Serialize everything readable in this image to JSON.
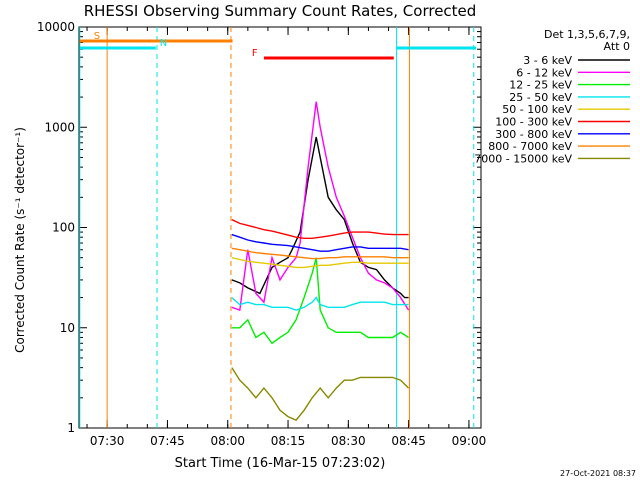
{
  "chart_data": {
    "type": "line",
    "title": "RHESSI Observing Summary Count Rates, Corrected",
    "xlabel": "Start Time (16-Mar-15 07:23:02)",
    "ylabel": "Corrected Count Rate (s⁻¹ detector⁻¹)",
    "y_scale": "log",
    "ylim": [
      1,
      10000
    ],
    "xlim_minutes": [
      0,
      100
    ],
    "x_tick_labels": [
      "07:30",
      "07:45",
      "08:00",
      "08:15",
      "08:30",
      "08:45",
      "09:00"
    ],
    "x_tick_minutes": [
      7,
      22,
      37,
      52,
      67,
      82,
      97
    ],
    "y_tick_labels": [
      "1",
      "10",
      "100",
      "1000",
      "10000"
    ],
    "y_tick_values": [
      1,
      10,
      100,
      1000,
      10000
    ],
    "legend": {
      "header_line1": "Det 1,3,5,6,7,9,",
      "header_line2": "Att 0",
      "placement": "top-right outside"
    },
    "timestamp": "27-Oct-2021 08:37",
    "flags": [
      {
        "label": "S",
        "color": "#ff8000",
        "x_start": 0.2,
        "x_end": 38.2
      },
      {
        "label": "N",
        "color": "#00e5ee",
        "x_start": 0.2,
        "x_end": 19.1
      },
      {
        "label": "F",
        "color": "#ff0000",
        "x_start": 46.0,
        "x_end": 78.3
      }
    ],
    "flag_n_second": {
      "x_start": 79.0,
      "x_end": 98.8
    },
    "vlines": [
      {
        "x": 0.2,
        "style": "solid",
        "color": "#00e5ee"
      },
      {
        "x": 7.0,
        "style": "solid",
        "color": "#ff8000"
      },
      {
        "x": 19.4,
        "style": "dashed",
        "color": "#00e5ee"
      },
      {
        "x": 37.8,
        "style": "dashed",
        "color": "#ff8000"
      },
      {
        "x": 79.0,
        "style": "solid",
        "color": "#00e5ee"
      },
      {
        "x": 82.2,
        "style": "solid",
        "color": "#ff8000"
      },
      {
        "x": 98.2,
        "style": "dashed",
        "color": "#00e5ee"
      }
    ],
    "series": [
      {
        "name": "3 - 6 keV",
        "color": "#000000",
        "points": [
          [
            38,
            30
          ],
          [
            40,
            28
          ],
          [
            42,
            25
          ],
          [
            45,
            22
          ],
          [
            48,
            40
          ],
          [
            50,
            45
          ],
          [
            52,
            50
          ],
          [
            53,
            60
          ],
          [
            55,
            90
          ],
          [
            57,
            300
          ],
          [
            59,
            800
          ],
          [
            60,
            500
          ],
          [
            62,
            200
          ],
          [
            64,
            150
          ],
          [
            66,
            120
          ],
          [
            68,
            70
          ],
          [
            70,
            45
          ],
          [
            72,
            40
          ],
          [
            74,
            38
          ],
          [
            76,
            30
          ],
          [
            78,
            25
          ],
          [
            80,
            22
          ],
          [
            81,
            20
          ],
          [
            82,
            20
          ]
        ]
      },
      {
        "name": "6 - 12 keV",
        "color": "#ff00ff",
        "points": [
          [
            38,
            16
          ],
          [
            40,
            15
          ],
          [
            42,
            60
          ],
          [
            44,
            22
          ],
          [
            46,
            18
          ],
          [
            48,
            50
          ],
          [
            50,
            30
          ],
          [
            52,
            40
          ],
          [
            54,
            50
          ],
          [
            55,
            70
          ],
          [
            57,
            400
          ],
          [
            59,
            1800
          ],
          [
            60,
            1000
          ],
          [
            62,
            400
          ],
          [
            64,
            200
          ],
          [
            66,
            130
          ],
          [
            68,
            80
          ],
          [
            70,
            50
          ],
          [
            72,
            35
          ],
          [
            74,
            30
          ],
          [
            76,
            28
          ],
          [
            78,
            25
          ],
          [
            80,
            20
          ],
          [
            82,
            15
          ]
        ]
      },
      {
        "name": "12 - 25 keV",
        "color": "#00ee00",
        "points": [
          [
            38,
            10
          ],
          [
            40,
            10
          ],
          [
            42,
            12
          ],
          [
            44,
            8
          ],
          [
            46,
            9
          ],
          [
            48,
            7
          ],
          [
            50,
            8
          ],
          [
            52,
            9
          ],
          [
            54,
            12
          ],
          [
            56,
            20
          ],
          [
            58,
            35
          ],
          [
            59,
            50
          ],
          [
            60,
            15
          ],
          [
            62,
            10
          ],
          [
            64,
            9
          ],
          [
            66,
            9
          ],
          [
            68,
            9
          ],
          [
            70,
            9
          ],
          [
            72,
            8
          ],
          [
            74,
            8
          ],
          [
            76,
            8
          ],
          [
            78,
            8
          ],
          [
            80,
            9
          ],
          [
            82,
            8
          ]
        ]
      },
      {
        "name": "25 - 50 keV",
        "color": "#00e5ee",
        "points": [
          [
            38,
            20
          ],
          [
            40,
            17
          ],
          [
            42,
            18
          ],
          [
            44,
            17
          ],
          [
            46,
            17
          ],
          [
            48,
            16
          ],
          [
            50,
            16
          ],
          [
            52,
            16
          ],
          [
            54,
            15
          ],
          [
            56,
            16
          ],
          [
            58,
            18
          ],
          [
            59,
            20
          ],
          [
            60,
            17
          ],
          [
            62,
            16
          ],
          [
            64,
            16
          ],
          [
            66,
            16
          ],
          [
            68,
            17
          ],
          [
            70,
            18
          ],
          [
            72,
            18
          ],
          [
            74,
            18
          ],
          [
            76,
            18
          ],
          [
            78,
            17
          ],
          [
            80,
            17
          ],
          [
            82,
            17
          ]
        ]
      },
      {
        "name": "50 - 100 keV",
        "color": "#e6c800",
        "points": [
          [
            38,
            50
          ],
          [
            40,
            48
          ],
          [
            42,
            46
          ],
          [
            44,
            45
          ],
          [
            46,
            44
          ],
          [
            48,
            43
          ],
          [
            50,
            42
          ],
          [
            52,
            41
          ],
          [
            54,
            40
          ],
          [
            56,
            40
          ],
          [
            58,
            41
          ],
          [
            60,
            42
          ],
          [
            62,
            42
          ],
          [
            64,
            43
          ],
          [
            66,
            44
          ],
          [
            68,
            45
          ],
          [
            70,
            45
          ],
          [
            72,
            44
          ],
          [
            74,
            44
          ],
          [
            76,
            44
          ],
          [
            78,
            44
          ],
          [
            80,
            44
          ],
          [
            82,
            44
          ]
        ]
      },
      {
        "name": "100 - 300 keV",
        "color": "#ff0000",
        "points": [
          [
            38,
            120
          ],
          [
            40,
            110
          ],
          [
            42,
            105
          ],
          [
            44,
            100
          ],
          [
            46,
            95
          ],
          [
            48,
            92
          ],
          [
            50,
            88
          ],
          [
            52,
            84
          ],
          [
            54,
            80
          ],
          [
            56,
            78
          ],
          [
            58,
            78
          ],
          [
            60,
            80
          ],
          [
            62,
            82
          ],
          [
            64,
            85
          ],
          [
            66,
            88
          ],
          [
            68,
            90
          ],
          [
            70,
            90
          ],
          [
            72,
            90
          ],
          [
            74,
            88
          ],
          [
            76,
            86
          ],
          [
            78,
            85
          ],
          [
            80,
            85
          ],
          [
            82,
            85
          ]
        ]
      },
      {
        "name": "300 - 800 keV",
        "color": "#0000ff",
        "points": [
          [
            38,
            85
          ],
          [
            40,
            80
          ],
          [
            42,
            75
          ],
          [
            44,
            72
          ],
          [
            46,
            70
          ],
          [
            48,
            68
          ],
          [
            50,
            67
          ],
          [
            52,
            66
          ],
          [
            54,
            64
          ],
          [
            56,
            62
          ],
          [
            58,
            60
          ],
          [
            60,
            58
          ],
          [
            62,
            58
          ],
          [
            64,
            60
          ],
          [
            66,
            62
          ],
          [
            68,
            64
          ],
          [
            70,
            64
          ],
          [
            72,
            62
          ],
          [
            74,
            62
          ],
          [
            76,
            62
          ],
          [
            78,
            62
          ],
          [
            80,
            62
          ],
          [
            82,
            60
          ]
        ]
      },
      {
        "name": "800 - 7000 keV",
        "color": "#ff8000",
        "points": [
          [
            38,
            62
          ],
          [
            40,
            60
          ],
          [
            42,
            58
          ],
          [
            44,
            56
          ],
          [
            46,
            55
          ],
          [
            48,
            54
          ],
          [
            50,
            53
          ],
          [
            52,
            52
          ],
          [
            54,
            51
          ],
          [
            56,
            50
          ],
          [
            58,
            49
          ],
          [
            60,
            49
          ],
          [
            62,
            50
          ],
          [
            64,
            50
          ],
          [
            66,
            51
          ],
          [
            68,
            51
          ],
          [
            70,
            51
          ],
          [
            72,
            51
          ],
          [
            74,
            51
          ],
          [
            76,
            51
          ],
          [
            78,
            50
          ],
          [
            80,
            50
          ],
          [
            82,
            50
          ]
        ]
      },
      {
        "name": "7000 - 15000 keV",
        "color": "#888800",
        "points": [
          [
            38,
            4
          ],
          [
            40,
            3
          ],
          [
            42,
            2.5
          ],
          [
            44,
            2
          ],
          [
            46,
            2.5
          ],
          [
            48,
            2
          ],
          [
            50,
            1.5
          ],
          [
            52,
            1.3
          ],
          [
            54,
            1.2
          ],
          [
            56,
            1.5
          ],
          [
            58,
            2
          ],
          [
            60,
            2.5
          ],
          [
            62,
            2
          ],
          [
            64,
            2.5
          ],
          [
            66,
            3
          ],
          [
            68,
            3
          ],
          [
            70,
            3.2
          ],
          [
            72,
            3.2
          ],
          [
            74,
            3.2
          ],
          [
            76,
            3.2
          ],
          [
            78,
            3.2
          ],
          [
            80,
            3
          ],
          [
            82,
            2.5
          ]
        ]
      }
    ]
  }
}
